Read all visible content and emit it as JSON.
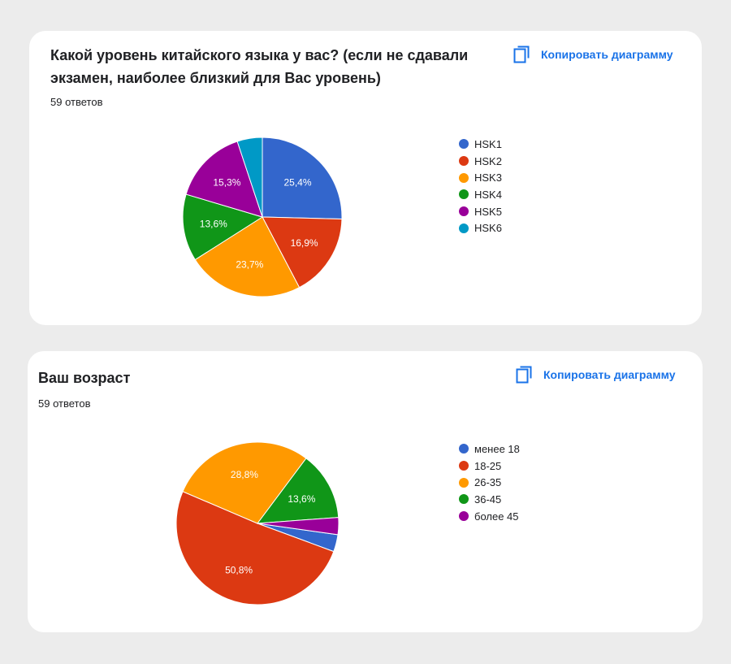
{
  "charts": [
    {
      "title": "Какой уровень китайского языка у вас? (если не сдавали экзамен, наиболее близкий для Вас уровень)",
      "subtitle": "59 ответов",
      "copy_label": "Копировать диаграмму",
      "copy_icon": "copy-icon"
    },
    {
      "title": "Ваш возраст",
      "subtitle": "59 ответов",
      "copy_label": "Копировать диаграмму",
      "copy_icon": "copy-icon"
    }
  ],
  "chart_data": [
    {
      "type": "pie",
      "title": "Какой уровень китайского языка у вас? (если не сдавали экзамен, наиболее близкий для Вас уровень)",
      "categories": [
        "HSK1",
        "HSK2",
        "HSK3",
        "HSK4",
        "HSK5",
        "HSK6"
      ],
      "values": [
        25.4,
        16.9,
        23.7,
        13.6,
        15.3,
        5.1
      ],
      "value_labels": [
        "25,4%",
        "16,9%",
        "23,7%",
        "13,6%",
        "15,3%",
        ""
      ],
      "colors": [
        "#3366cc",
        "#dc3912",
        "#ff9900",
        "#109618",
        "#990099",
        "#0099c6"
      ],
      "legend": "right"
    },
    {
      "type": "pie",
      "title": "Ваш возраст",
      "categories": [
        "менее 18",
        "18-25",
        "26-35",
        "36-45",
        "более 45"
      ],
      "values": [
        3.4,
        50.8,
        28.8,
        13.6,
        3.4
      ],
      "value_labels": [
        "",
        "50,8%",
        "28,8%",
        "13,6%",
        ""
      ],
      "colors": [
        "#3366cc",
        "#dc3912",
        "#ff9900",
        "#109618",
        "#990099"
      ],
      "legend": "right"
    }
  ]
}
